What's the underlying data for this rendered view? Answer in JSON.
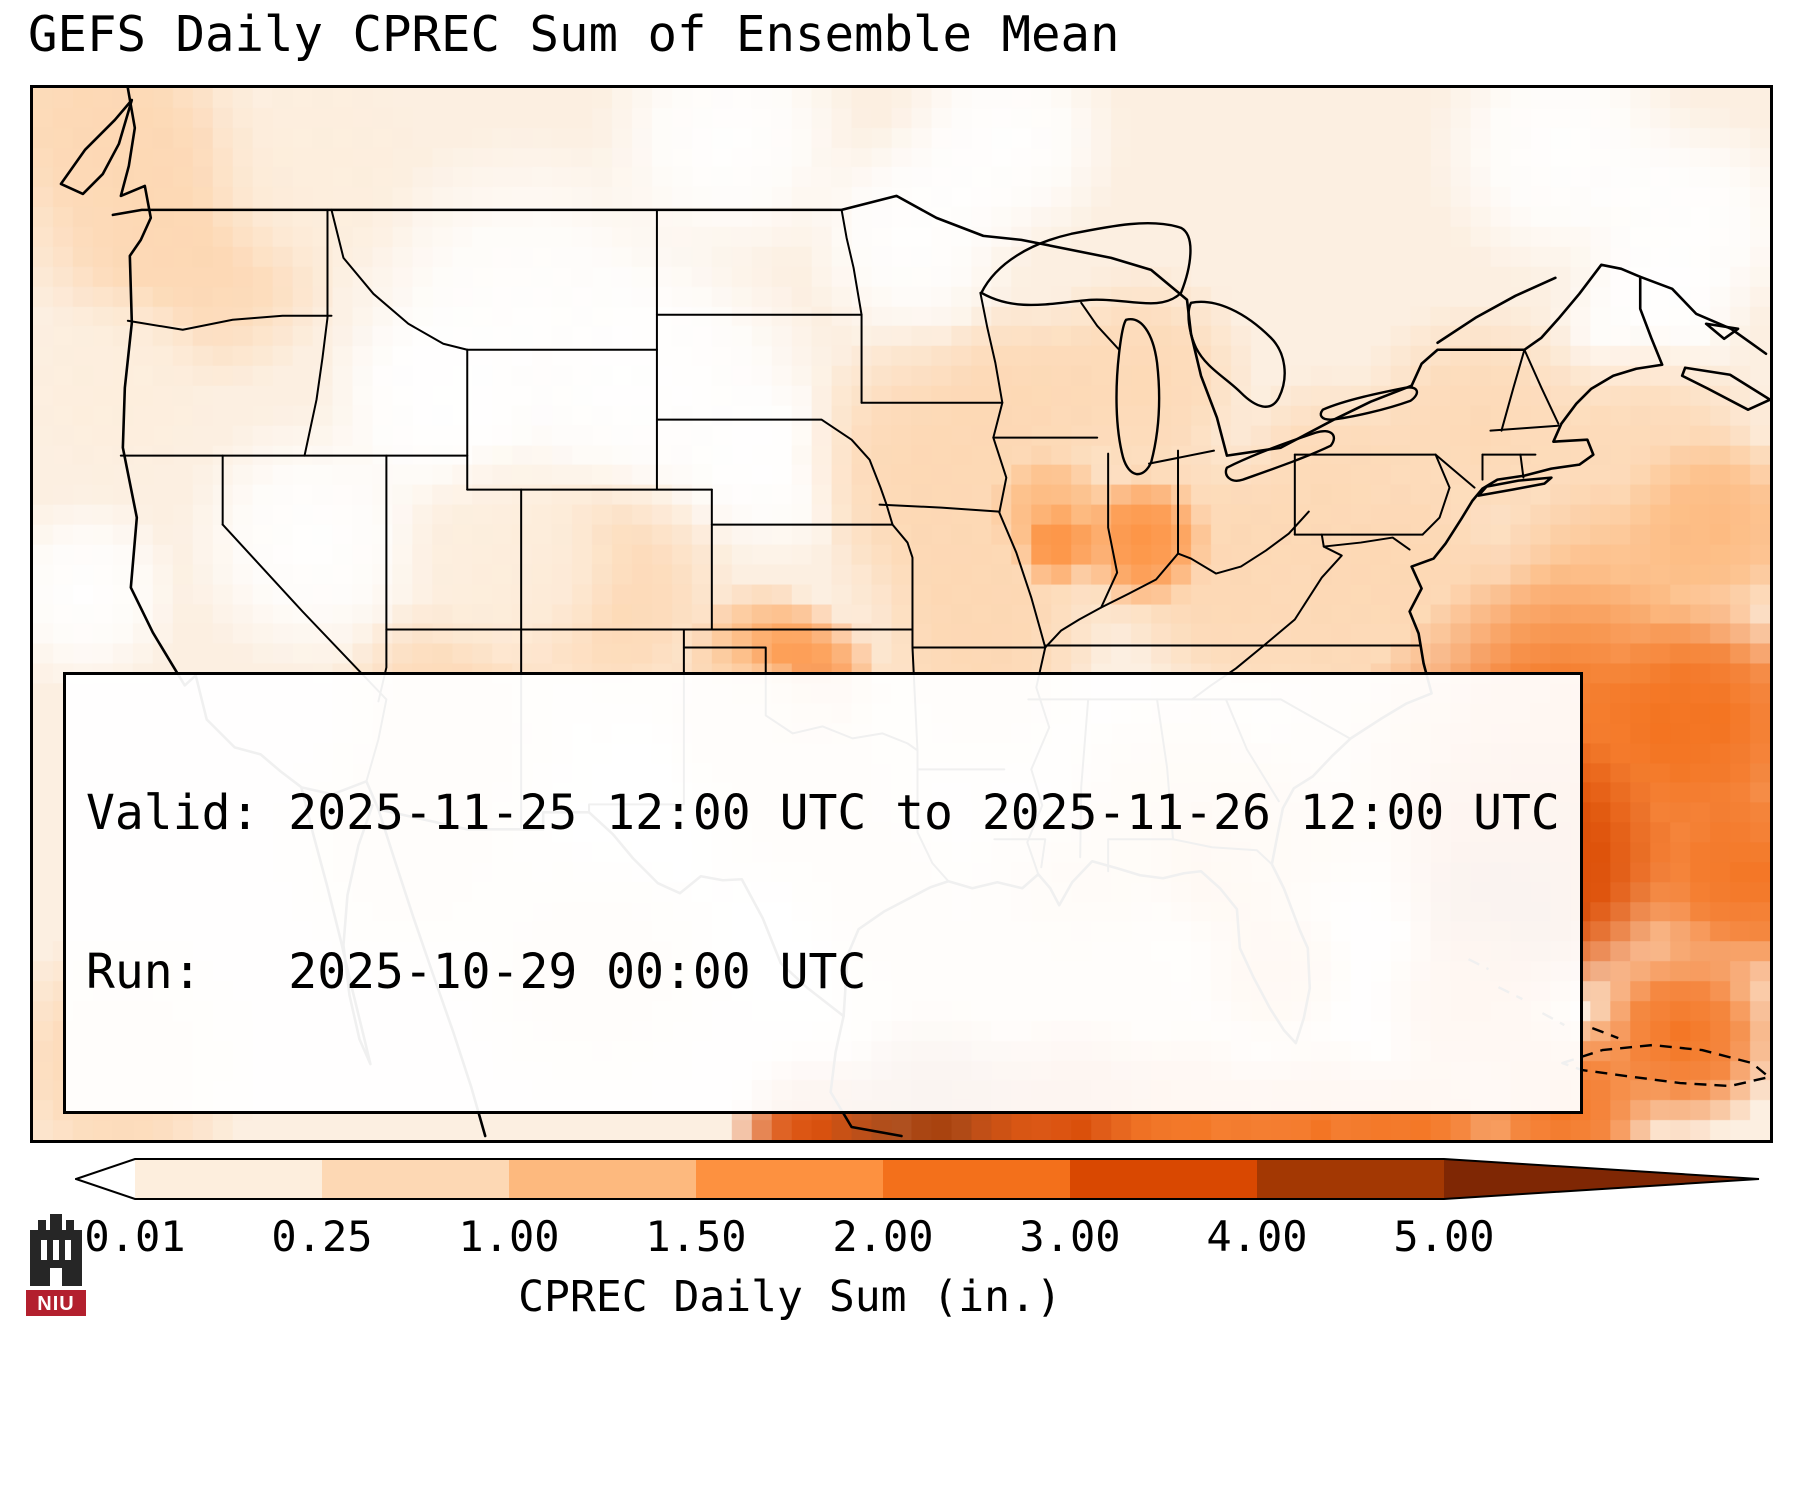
{
  "title": "GEFS Daily CPREC Sum of Ensemble Mean",
  "info_box": {
    "valid_line": "Valid: 2025-11-25 12:00 UTC to 2025-11-26 12:00 UTC",
    "run_line": "Run:   2025-10-29 00:00 UTC"
  },
  "colorbar": {
    "label": "CPREC Daily Sum (in.)",
    "ticks": [
      "0.01",
      "0.25",
      "1.00",
      "1.50",
      "2.00",
      "3.00",
      "4.00",
      "5.00"
    ],
    "bin_colors": [
      "#fdeedd",
      "#fdd8b4",
      "#fdb97e",
      "#fd9140",
      "#f3701b",
      "#d94801",
      "#a33803"
    ],
    "under_color": "#ffffff",
    "over_color": "#7f2704"
  },
  "logo": {
    "text": "NIU",
    "red": "#b3202e",
    "dark": "#262626"
  },
  "chart_data": {
    "type": "heatmap",
    "title": "GEFS Daily CPREC Sum of Ensemble Mean",
    "variable": "CPREC Daily Sum",
    "units": "inches",
    "region": "CONUS",
    "valid": "2025-11-25 12:00 UTC to 2025-11-26 12:00 UTC",
    "run": "2025-10-29 00:00 UTC",
    "value_bins": [
      0.01,
      0.25,
      1.0,
      1.5,
      2.0,
      3.0,
      4.0,
      5.0
    ],
    "bin_colors": [
      "#fdeedd",
      "#fdd8b4",
      "#fdb97e",
      "#fd9140",
      "#f3701b",
      "#d94801",
      "#a33803"
    ],
    "over_color": "#7f2704",
    "base_color": "#fcefe1",
    "dry_patches": [
      {
        "x": 0.287,
        "y": 0.23,
        "r": 0.12
      },
      {
        "x": 0.374,
        "y": 0.285,
        "r": 0.09
      },
      {
        "x": 0.161,
        "y": 0.43,
        "r": 0.08
      },
      {
        "x": 0.23,
        "y": 0.3,
        "r": 0.07
      },
      {
        "x": 0.425,
        "y": 0.36,
        "r": 0.06
      },
      {
        "x": 0.356,
        "y": 0.69,
        "r": 0.06
      },
      {
        "x": 0.437,
        "y": 0.81,
        "r": 0.05
      },
      {
        "x": 0.506,
        "y": 0.14,
        "r": 0.07
      },
      {
        "x": 0.4,
        "y": 0.05,
        "r": 0.08
      },
      {
        "x": 0.56,
        "y": 0.05,
        "r": 0.07
      },
      {
        "x": 0.88,
        "y": 0.06,
        "r": 0.08
      },
      {
        "x": 0.955,
        "y": 0.13,
        "r": 0.07
      },
      {
        "x": 0.93,
        "y": 0.22,
        "r": 0.06
      },
      {
        "x": 0.03,
        "y": 0.48,
        "r": 0.06
      },
      {
        "x": 0.3,
        "y": 0.55,
        "r": 0.045
      }
    ],
    "precip_blobs": [
      {
        "x": 0.035,
        "y": 0.02,
        "r": 0.07,
        "v": 0.6
      },
      {
        "x": 0.063,
        "y": 0.1,
        "r": 0.09,
        "v": 0.4
      },
      {
        "x": 0.1,
        "y": 0.16,
        "r": 0.08,
        "v": 0.3
      },
      {
        "x": 0.16,
        "y": 0.08,
        "r": 0.07,
        "v": 0.2
      },
      {
        "x": 0.05,
        "y": 0.28,
        "r": 0.06,
        "v": 0.2
      },
      {
        "x": 0.241,
        "y": 0.6,
        "r": 0.075,
        "v": 0.4
      },
      {
        "x": 0.225,
        "y": 0.645,
        "r": 0.04,
        "v": 0.6
      },
      {
        "x": 0.328,
        "y": 0.49,
        "r": 0.08,
        "v": 0.25
      },
      {
        "x": 0.276,
        "y": 0.45,
        "r": 0.07,
        "v": 0.2
      },
      {
        "x": 0.218,
        "y": 0.72,
        "r": 0.08,
        "v": 0.3
      },
      {
        "x": 0.322,
        "y": 0.84,
        "r": 0.08,
        "v": 0.25
      },
      {
        "x": 0.05,
        "y": 0.93,
        "r": 0.08,
        "v": 0.35
      },
      {
        "x": 0.552,
        "y": 0.43,
        "r": 0.1,
        "v": 0.4
      },
      {
        "x": 0.517,
        "y": 0.35,
        "r": 0.08,
        "v": 0.35
      },
      {
        "x": 0.57,
        "y": 0.295,
        "r": 0.06,
        "v": 0.35
      },
      {
        "x": 0.638,
        "y": 0.28,
        "r": 0.07,
        "v": 0.35
      },
      {
        "x": 0.661,
        "y": 0.43,
        "r": 0.07,
        "v": 0.3
      },
      {
        "x": 0.707,
        "y": 0.49,
        "r": 0.08,
        "v": 0.3
      },
      {
        "x": 0.747,
        "y": 0.38,
        "r": 0.07,
        "v": 0.3
      },
      {
        "x": 0.833,
        "y": 0.33,
        "r": 0.08,
        "v": 0.4
      },
      {
        "x": 0.543,
        "y": 0.475,
        "r": 0.05,
        "v": 0.8
      },
      {
        "x": 0.586,
        "y": 0.4,
        "r": 0.035,
        "v": 1.2
      },
      {
        "x": 0.59,
        "y": 0.435,
        "r": 0.025,
        "v": 1.6
      },
      {
        "x": 0.639,
        "y": 0.43,
        "r": 0.04,
        "v": 1.5
      },
      {
        "x": 0.546,
        "y": 0.56,
        "r": 0.07,
        "v": 0.7
      },
      {
        "x": 0.42,
        "y": 0.54,
        "r": 0.045,
        "v": 1.0
      },
      {
        "x": 0.443,
        "y": 0.57,
        "r": 0.05,
        "v": 1.7
      },
      {
        "x": 0.449,
        "y": 0.585,
        "r": 0.028,
        "v": 2.1
      },
      {
        "x": 0.443,
        "y": 0.66,
        "r": 0.08,
        "v": 0.5
      },
      {
        "x": 0.4,
        "y": 0.6,
        "r": 0.05,
        "v": 0.6
      },
      {
        "x": 0.489,
        "y": 0.77,
        "r": 0.06,
        "v": 0.8
      },
      {
        "x": 0.575,
        "y": 0.75,
        "r": 0.05,
        "v": 0.9
      },
      {
        "x": 0.6,
        "y": 0.78,
        "r": 0.05,
        "v": 1.2
      },
      {
        "x": 0.661,
        "y": 0.7,
        "r": 0.08,
        "v": 1.0
      },
      {
        "x": 0.69,
        "y": 0.74,
        "r": 0.05,
        "v": 1.5
      },
      {
        "x": 0.713,
        "y": 0.84,
        "r": 0.05,
        "v": 1.8
      },
      {
        "x": 0.724,
        "y": 0.7,
        "r": 0.06,
        "v": 1.3
      },
      {
        "x": 0.764,
        "y": 0.61,
        "r": 0.06,
        "v": 0.8
      },
      {
        "x": 0.782,
        "y": 0.49,
        "r": 0.07,
        "v": 0.5
      },
      {
        "x": 0.8,
        "y": 0.45,
        "r": 0.05,
        "v": 0.5
      },
      {
        "x": 0.93,
        "y": 0.36,
        "r": 0.08,
        "v": 0.8
      },
      {
        "x": 0.97,
        "y": 0.42,
        "r": 0.06,
        "v": 1.0
      },
      {
        "x": 0.9,
        "y": 0.52,
        "r": 0.09,
        "v": 1.3
      },
      {
        "x": 0.97,
        "y": 0.6,
        "r": 0.07,
        "v": 2.5
      },
      {
        "x": 0.88,
        "y": 0.665,
        "r": 0.13,
        "v": 2.2
      },
      {
        "x": 0.862,
        "y": 0.74,
        "r": 0.085,
        "v": 3.2
      },
      {
        "x": 0.845,
        "y": 0.785,
        "r": 0.05,
        "v": 4.3
      },
      {
        "x": 0.99,
        "y": 0.75,
        "r": 0.07,
        "v": 2.8
      },
      {
        "x": 0.83,
        "y": 0.87,
        "r": 0.06,
        "v": 2.5
      },
      {
        "x": 0.95,
        "y": 0.9,
        "r": 0.06,
        "v": 2.2
      },
      {
        "x": 0.88,
        "y": 0.97,
        "r": 0.06,
        "v": 2.4
      },
      {
        "x": 0.55,
        "y": 0.89,
        "r": 0.1,
        "v": 0.6
      },
      {
        "x": 0.62,
        "y": 0.89,
        "r": 0.08,
        "v": 0.9
      },
      {
        "x": 0.45,
        "y": 0.99,
        "r": 0.05,
        "v": 3.0
      },
      {
        "x": 0.52,
        "y": 0.985,
        "r": 0.07,
        "v": 4.0
      },
      {
        "x": 0.6,
        "y": 0.99,
        "r": 0.07,
        "v": 3.2
      },
      {
        "x": 0.67,
        "y": 0.985,
        "r": 0.06,
        "v": 2.6
      },
      {
        "x": 0.74,
        "y": 0.99,
        "r": 0.06,
        "v": 2.2
      },
      {
        "x": 0.8,
        "y": 0.985,
        "r": 0.05,
        "v": 2.0
      }
    ]
  }
}
